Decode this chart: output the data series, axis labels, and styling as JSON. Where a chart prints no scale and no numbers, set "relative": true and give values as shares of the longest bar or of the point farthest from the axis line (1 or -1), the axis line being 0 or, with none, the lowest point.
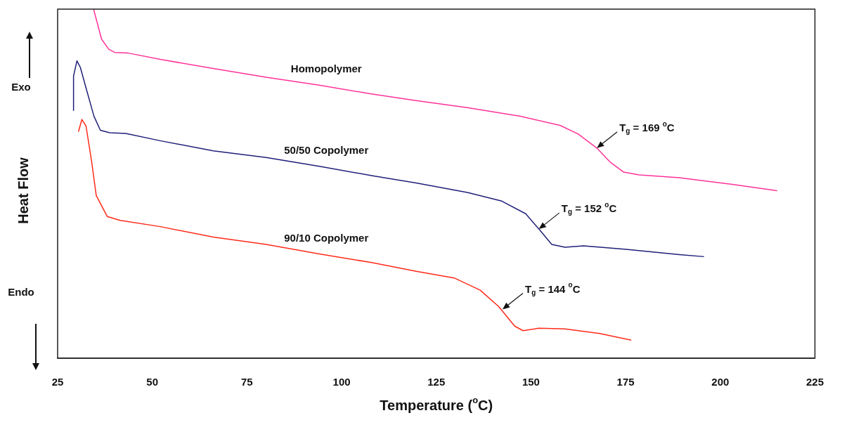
{
  "chart_data": {
    "type": "line",
    "xlabel": "Temperature ($^{o}$C)",
    "ylabel": "Heat Flow",
    "xlim": [
      25,
      225
    ],
    "xticks": [
      25,
      50,
      75,
      100,
      125,
      150,
      175,
      200,
      225
    ],
    "relative": true,
    "marker": "none",
    "line_style": "solid",
    "series": [
      {
        "name": "Homopolymer",
        "color": "#ff3399",
        "x": [
          34.5,
          36.6,
          38.5,
          40.1,
          43.7,
          52.1,
          66.1,
          80.1,
          94.1,
          107.9,
          119.7,
          133.2,
          147.2,
          157.7,
          162.5,
          167.4,
          171.0,
          174.5,
          178.6,
          189.2,
          203.2,
          215.0
        ],
        "values": [
          1.0,
          0.914,
          0.885,
          0.876,
          0.874,
          0.856,
          0.83,
          0.805,
          0.782,
          0.757,
          0.738,
          0.718,
          0.693,
          0.667,
          0.642,
          0.602,
          0.561,
          0.533,
          0.525,
          0.517,
          0.498,
          0.48
        ]
      },
      {
        "name": "50/50 Copolymer",
        "color": "#1f1f7a",
        "x": [
          29.2,
          29.2,
          30.1,
          31.0,
          32.5,
          34.6,
          36.3,
          38.8,
          43.0,
          52.1,
          66.1,
          80.1,
          94.1,
          107.9,
          119.7,
          133.2,
          142.3,
          148.6,
          152.1,
          155.5,
          159.0,
          163.9,
          175.2,
          189.2,
          195.7
        ],
        "values": [
          0.709,
          0.808,
          0.852,
          0.833,
          0.774,
          0.693,
          0.653,
          0.646,
          0.644,
          0.623,
          0.594,
          0.575,
          0.55,
          0.523,
          0.502,
          0.475,
          0.45,
          0.414,
          0.37,
          0.326,
          0.318,
          0.322,
          0.312,
          0.297,
          0.291
        ]
      },
      {
        "name": "90/10 Copolymer",
        "color": "#ff2a1a",
        "x": [
          30.5,
          31.4,
          32.5,
          33.9,
          35.2,
          38.1,
          41.5,
          52.1,
          66.1,
          80.1,
          94.1,
          107.9,
          119.7,
          129.7,
          136.6,
          141.5,
          145.7,
          147.9,
          152.1,
          159.0,
          168.1,
          176.5
        ],
        "values": [
          0.649,
          0.684,
          0.665,
          0.569,
          0.466,
          0.406,
          0.395,
          0.377,
          0.347,
          0.326,
          0.299,
          0.274,
          0.249,
          0.23,
          0.195,
          0.148,
          0.092,
          0.079,
          0.086,
          0.084,
          0.071,
          0.052
        ]
      }
    ],
    "annotations": [
      "Exo",
      "Endo",
      {
        "text": "T$_{g}$ = 169 $^{o}$C",
        "x": 167.4,
        "y": 0.602
      },
      {
        "text": "T$_{g}$ = 152 $^{o}$C",
        "x": 152.1,
        "y": 0.37
      },
      {
        "text": "T$_{g}$ = 144 $^{o}$C",
        "x": 142.5,
        "y": 0.14
      }
    ]
  }
}
